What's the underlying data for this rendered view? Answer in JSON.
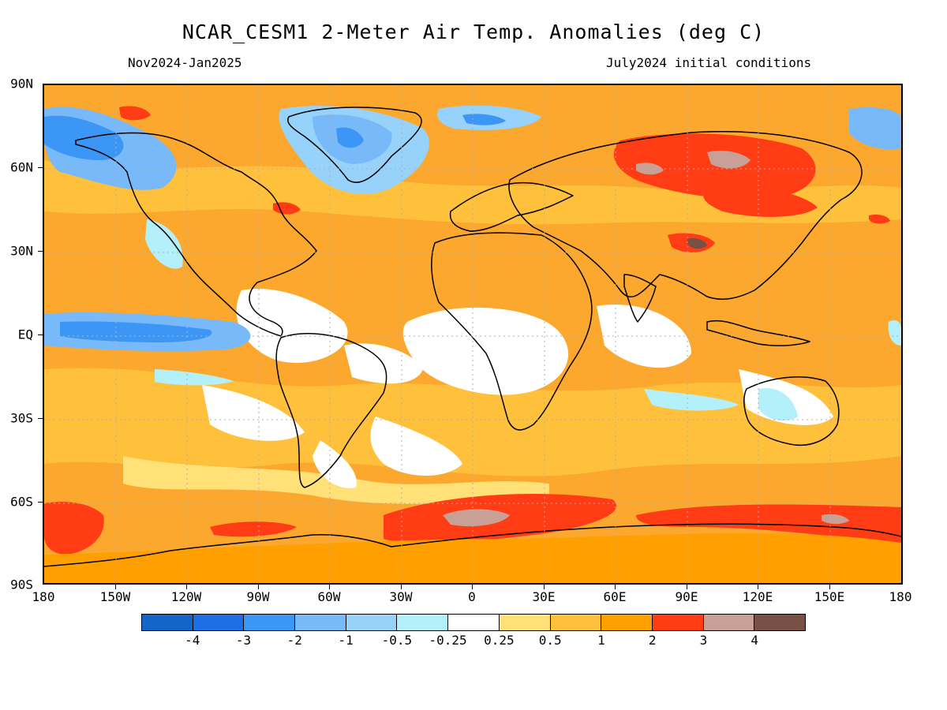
{
  "title": "NCAR_CESM1 2-Meter Air Temp. Anomalies (deg C)",
  "subtitle_left": "Nov2024-Jan2025",
  "subtitle_right": "July2024 initial conditions",
  "lat_labels": [
    "90N",
    "60N",
    "30N",
    "EQ",
    "30S",
    "60S",
    "90S"
  ],
  "lon_labels": [
    "180",
    "150W",
    "120W",
    "90W",
    "60W",
    "30W",
    "0",
    "30E",
    "60E",
    "90E",
    "120E",
    "150E",
    "180"
  ],
  "colorbar": {
    "colors": [
      "#1565c8",
      "#1e6ee6",
      "#3c96f5",
      "#78b9fa",
      "#96d2fa",
      "#b4f0fa",
      "#ffffff",
      "#ffe178",
      "#ffc03c",
      "#ffa000",
      "#ff3c14",
      "#c8a096",
      "#785046"
    ],
    "labels": [
      "-4",
      "-3",
      "-2",
      "-1",
      "-0.5",
      "-0.25",
      "0.25",
      "0.5",
      "1",
      "2",
      "3",
      "4"
    ]
  },
  "palette": {
    "ocean_base": "#fca72e",
    "warm_light": "#ffe178",
    "warm_mid": "#ffc03c",
    "warm_strong": "#ffa000",
    "hot": "#ff3c14",
    "very_hot": "#c8a096",
    "extreme": "#785046",
    "cool_light": "#b4f0fa",
    "cool_mid": "#78b9fa",
    "cool_strong": "#3c96f5",
    "neutral": "#ffffff",
    "coast": "#000000",
    "grid": "#b0b0b0"
  }
}
